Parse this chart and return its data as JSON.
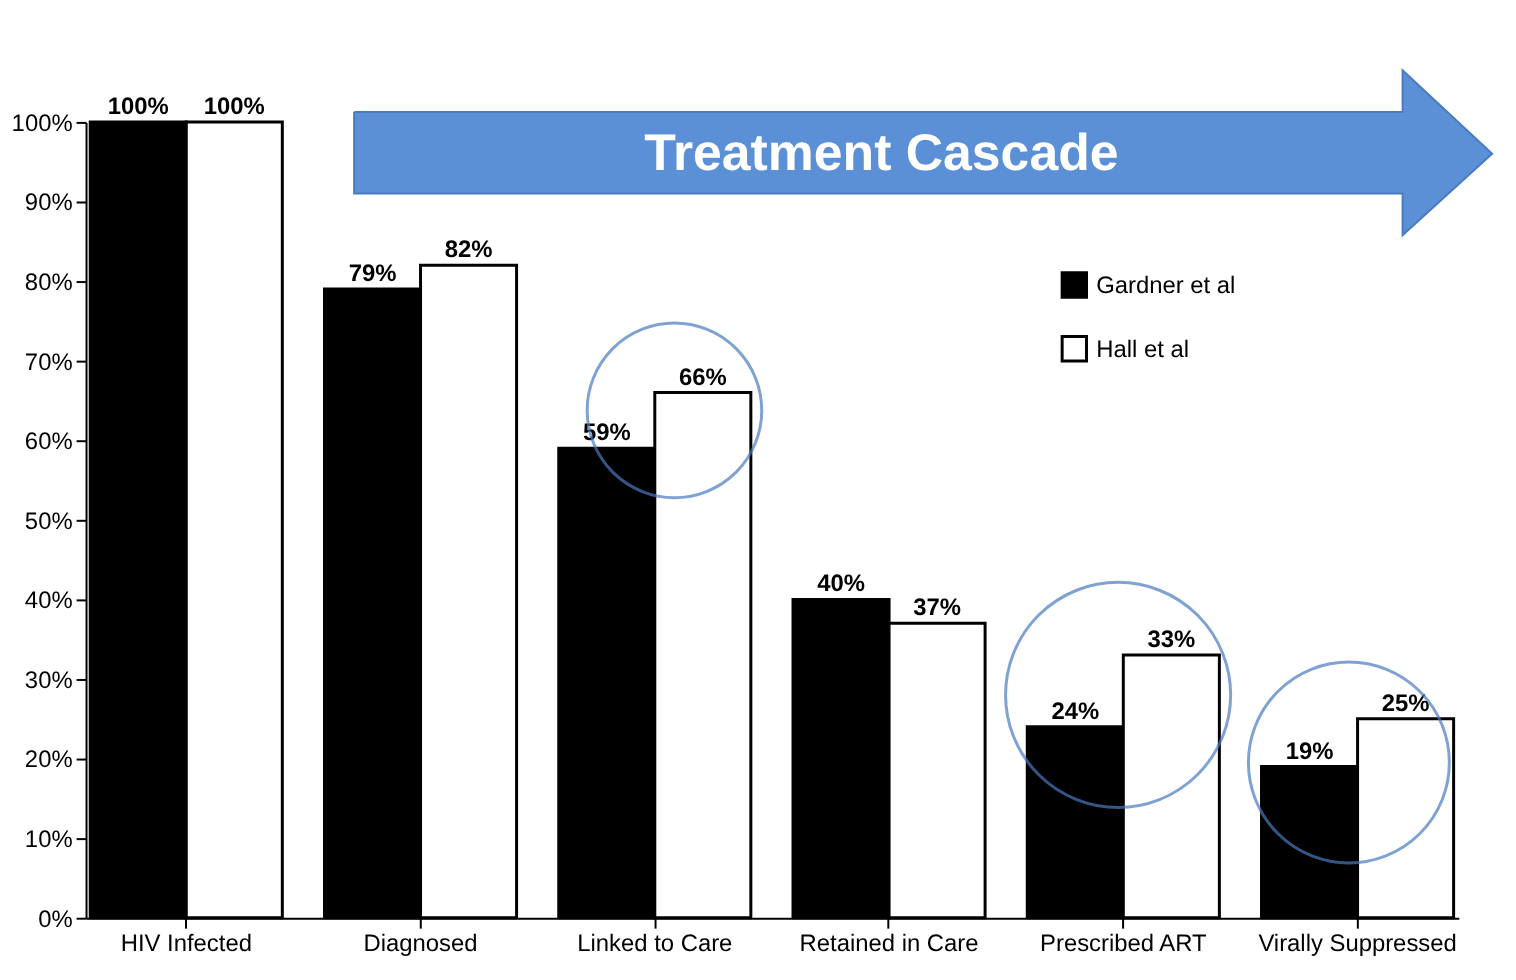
{
  "chart_data": {
    "type": "bar",
    "categories": [
      "HIV Infected",
      "Diagnosed",
      "Linked to Care",
      "Retained in Care",
      "Prescribed ART",
      "Virally Suppressed"
    ],
    "series": [
      {
        "name": "Gardner et al",
        "color": "#000000",
        "values": [
          100,
          79,
          59,
          40,
          24,
          19
        ],
        "value_labels": [
          "100%",
          "79%",
          "59%",
          "40%",
          "24%",
          "19%"
        ]
      },
      {
        "name": "Hall et al",
        "color": "#ffffff",
        "values": [
          100,
          82,
          66,
          37,
          33,
          25
        ],
        "value_labels": [
          "100%",
          "82%",
          "66%",
          "37%",
          "33%",
          "25%"
        ]
      }
    ],
    "ylim": [
      0,
      100
    ],
    "yticks": [
      {
        "value": 0,
        "label": "0%"
      },
      {
        "value": 10,
        "label": "10%"
      },
      {
        "value": 20,
        "label": "20%"
      },
      {
        "value": 30,
        "label": "30%"
      },
      {
        "value": 40,
        "label": "40%"
      },
      {
        "value": 50,
        "label": "50%"
      },
      {
        "value": 60,
        "label": "60%"
      },
      {
        "value": 70,
        "label": "70%"
      },
      {
        "value": 80,
        "label": "80%"
      },
      {
        "value": 90,
        "label": "90%"
      },
      {
        "value": 100,
        "label": "100%"
      }
    ],
    "annotations": [
      "Treatment Cascade"
    ],
    "legend": "top right",
    "grid": false
  }
}
